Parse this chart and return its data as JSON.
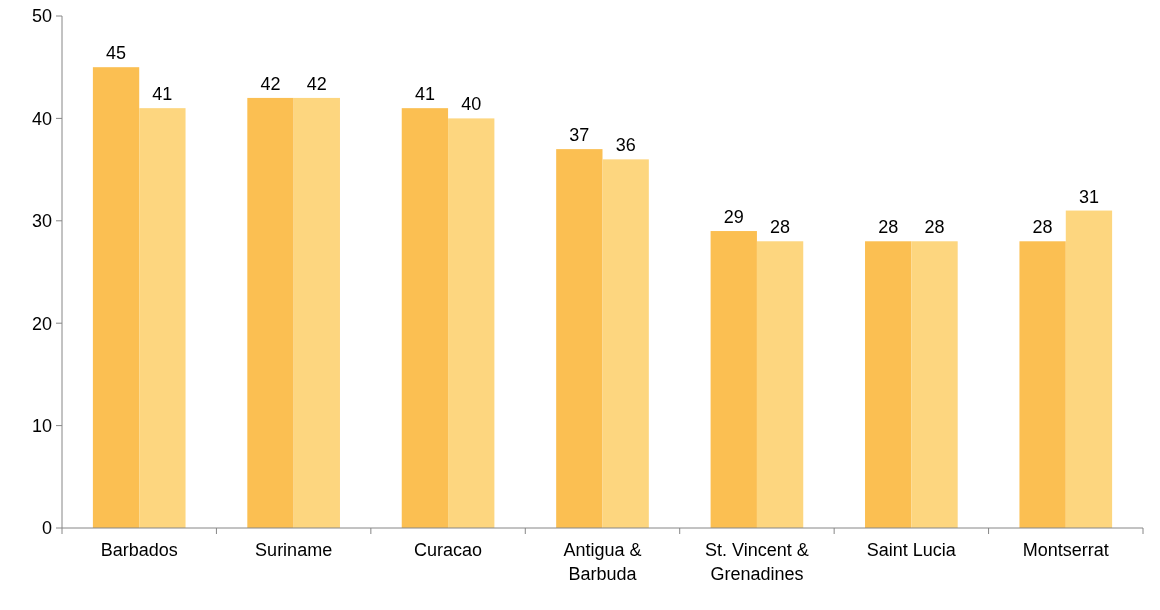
{
  "chart_data": {
    "type": "bar",
    "categories": [
      "Barbados",
      "Suriname",
      "Curacao",
      "Antigua & Barbuda",
      "St. Vincent & Grenadines",
      "Saint Lucia",
      "Montserrat"
    ],
    "series": [
      {
        "color": "#fbbf52",
        "values": [
          45,
          42,
          41,
          37,
          29,
          28,
          28
        ]
      },
      {
        "color": "#fdd67f",
        "values": [
          41,
          42,
          40,
          36,
          28,
          28,
          31
        ]
      }
    ],
    "ylim": [
      0,
      50
    ],
    "yticks": [
      0,
      10,
      20,
      30,
      40,
      50
    ],
    "data_labels": true
  }
}
